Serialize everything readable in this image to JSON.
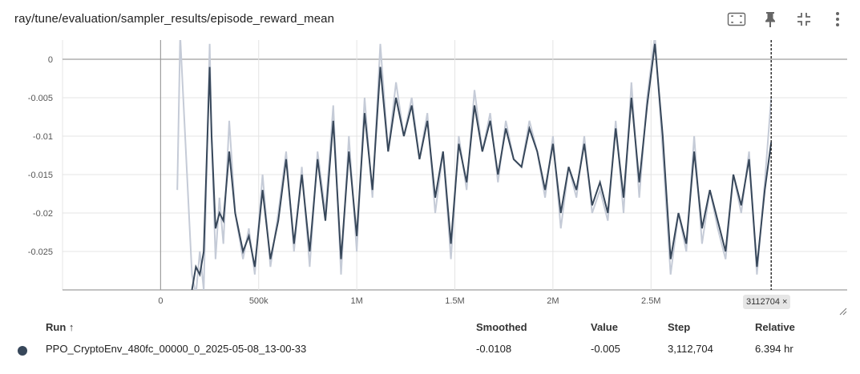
{
  "header": {
    "title": "ray/tune/evaluation/sampler_results/episode_reward_mean",
    "icons": [
      "fit-domain-icon",
      "pin-icon",
      "collapse-icon",
      "more-vert-icon"
    ]
  },
  "cursor": {
    "label": "3112704",
    "close_glyph": "×"
  },
  "table": {
    "headers": {
      "run": "Run ↑",
      "smoothed": "Smoothed",
      "value": "Value",
      "step": "Step",
      "relative": "Relative"
    },
    "rows": [
      {
        "run": "PPO_CryptoEnv_480fc_00000_0_2025-05-08_13-00-33",
        "smoothed": "-0.0108",
        "value": "-0.005",
        "step": "3,112,704",
        "relative": "6.394 hr",
        "color": "#37475a"
      }
    ]
  },
  "chart_data": {
    "type": "line",
    "title": "ray/tune/evaluation/sampler_results/episode_reward_mean",
    "xlabel": "",
    "ylabel": "",
    "xlim": [
      -500000,
      3500000
    ],
    "ylim": [
      -0.03,
      0.0025
    ],
    "x_ticks": [
      0,
      500000,
      1000000,
      1500000,
      2000000,
      2500000
    ],
    "x_tick_labels": [
      "0",
      "500k",
      "1M",
      "1.5M",
      "2M",
      "2.5M"
    ],
    "y_ticks": [
      0,
      -0.005,
      -0.01,
      -0.015,
      -0.02,
      -0.025
    ],
    "y_tick_labels": [
      "0",
      "-0.005",
      "-0.01",
      "-0.015",
      "-0.02",
      "-0.025"
    ],
    "grid": true,
    "cursor_step": 3112704,
    "colors": {
      "raw": "#c5cbd7",
      "smoothed": "#37475a",
      "grid": "#e4e4e4",
      "zero_axis": "#9e9e9e"
    },
    "series": [
      {
        "name": "PPO_CryptoEnv_480fc_00000_0_2025-05-08_13-00-33",
        "x": [
          85000,
          100000,
          160000,
          180000,
          200000,
          220000,
          250000,
          260000,
          280000,
          300000,
          320000,
          350000,
          380000,
          420000,
          450000,
          480000,
          520000,
          560000,
          600000,
          640000,
          680000,
          720000,
          760000,
          800000,
          840000,
          880000,
          920000,
          960000,
          1000000,
          1040000,
          1080000,
          1120000,
          1160000,
          1200000,
          1240000,
          1280000,
          1320000,
          1360000,
          1400000,
          1440000,
          1480000,
          1520000,
          1560000,
          1600000,
          1640000,
          1680000,
          1720000,
          1760000,
          1800000,
          1840000,
          1880000,
          1920000,
          1960000,
          2000000,
          2040000,
          2080000,
          2120000,
          2160000,
          2200000,
          2240000,
          2280000,
          2320000,
          2360000,
          2400000,
          2440000,
          2480000,
          2520000,
          2560000,
          2600000,
          2640000,
          2680000,
          2720000,
          2760000,
          2800000,
          2840000,
          2880000,
          2920000,
          2960000,
          3000000,
          3040000,
          3080000,
          3112704
        ],
        "raw": [
          -0.017,
          0.004,
          -0.028,
          -0.032,
          -0.025,
          -0.03,
          0.002,
          -0.01,
          -0.026,
          -0.018,
          -0.024,
          -0.008,
          -0.02,
          -0.026,
          -0.022,
          -0.028,
          -0.015,
          -0.027,
          -0.02,
          -0.012,
          -0.025,
          -0.014,
          -0.027,
          -0.012,
          -0.02,
          -0.006,
          -0.028,
          -0.01,
          -0.025,
          -0.005,
          -0.018,
          0.002,
          -0.012,
          -0.003,
          -0.01,
          -0.005,
          -0.013,
          -0.007,
          -0.02,
          -0.012,
          -0.026,
          -0.01,
          -0.017,
          -0.004,
          -0.012,
          -0.007,
          -0.016,
          -0.008,
          -0.013,
          -0.014,
          -0.008,
          -0.012,
          -0.018,
          -0.01,
          -0.022,
          -0.014,
          -0.018,
          -0.01,
          -0.02,
          -0.017,
          -0.021,
          -0.008,
          -0.02,
          -0.003,
          -0.018,
          -0.005,
          0.004,
          -0.012,
          -0.028,
          -0.02,
          -0.025,
          -0.01,
          -0.024,
          -0.017,
          -0.022,
          -0.026,
          -0.015,
          -0.02,
          -0.012,
          -0.028,
          -0.016,
          -0.005
        ],
        "smoothed": [
          null,
          null,
          -0.03,
          -0.027,
          -0.028,
          -0.025,
          -0.001,
          -0.01,
          -0.022,
          -0.02,
          -0.021,
          -0.012,
          -0.02,
          -0.025,
          -0.023,
          -0.027,
          -0.017,
          -0.026,
          -0.021,
          -0.013,
          -0.024,
          -0.015,
          -0.025,
          -0.013,
          -0.021,
          -0.008,
          -0.026,
          -0.012,
          -0.023,
          -0.007,
          -0.017,
          -0.001,
          -0.012,
          -0.005,
          -0.01,
          -0.006,
          -0.013,
          -0.008,
          -0.018,
          -0.012,
          -0.024,
          -0.011,
          -0.016,
          -0.006,
          -0.012,
          -0.008,
          -0.015,
          -0.009,
          -0.013,
          -0.014,
          -0.009,
          -0.012,
          -0.017,
          -0.011,
          -0.02,
          -0.014,
          -0.017,
          -0.011,
          -0.019,
          -0.016,
          -0.02,
          -0.009,
          -0.018,
          -0.005,
          -0.016,
          -0.006,
          0.002,
          -0.01,
          -0.026,
          -0.02,
          -0.024,
          -0.012,
          -0.022,
          -0.017,
          -0.021,
          -0.025,
          -0.015,
          -0.019,
          -0.013,
          -0.027,
          -0.017,
          -0.0108
        ]
      }
    ]
  }
}
